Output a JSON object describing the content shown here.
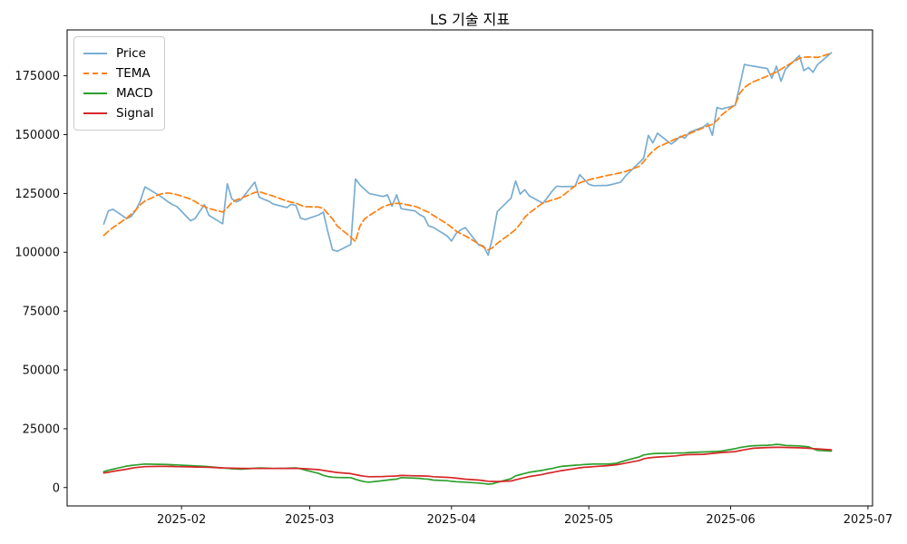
{
  "title": "LS 기술 지표",
  "legend": {
    "position": "upper left",
    "items": [
      {
        "label": "Price"
      },
      {
        "label": "TEMA"
      },
      {
        "label": "MACD"
      },
      {
        "label": "Signal"
      }
    ]
  },
  "colors": {
    "price": "#79add2",
    "tema": "#ff7f0e",
    "macd": "#2ca02c",
    "signal": "#d62728",
    "spine": "#000000",
    "tick_label": "#111111"
  },
  "chart_data": {
    "type": "line",
    "title": "LS 기술 지표",
    "xlabel": "",
    "ylabel": "",
    "grid": false,
    "legend_position": "upper left",
    "ylim": [
      -7800,
      194500
    ],
    "xlim": [
      "2025-01-07",
      "2025-07-02"
    ],
    "yticks": [
      0,
      25000,
      50000,
      75000,
      100000,
      125000,
      150000,
      175000
    ],
    "xticks": [
      {
        "date": "2025-02-01",
        "label": "2025-02"
      },
      {
        "date": "2025-03-01",
        "label": "2025-03"
      },
      {
        "date": "2025-04-01",
        "label": "2025-04"
      },
      {
        "date": "2025-05-01",
        "label": "2025-05"
      },
      {
        "date": "2025-06-01",
        "label": "2025-06"
      },
      {
        "date": "2025-07-01",
        "label": "2025-07"
      }
    ],
    "x": [
      "2025-01-15",
      "2025-01-16",
      "2025-01-17",
      "2025-01-20",
      "2025-01-21",
      "2025-01-22",
      "2025-01-23",
      "2025-01-24",
      "2025-01-27",
      "2025-01-28",
      "2025-01-29",
      "2025-01-30",
      "2025-01-31",
      "2025-02-03",
      "2025-02-04",
      "2025-02-05",
      "2025-02-06",
      "2025-02-07",
      "2025-02-10",
      "2025-02-11",
      "2025-02-12",
      "2025-02-13",
      "2025-02-14",
      "2025-02-17",
      "2025-02-18",
      "2025-02-19",
      "2025-02-20",
      "2025-02-21",
      "2025-02-24",
      "2025-02-25",
      "2025-02-26",
      "2025-02-27",
      "2025-02-28",
      "2025-03-03",
      "2025-03-04",
      "2025-03-05",
      "2025-03-06",
      "2025-03-07",
      "2025-03-10",
      "2025-03-11",
      "2025-03-12",
      "2025-03-13",
      "2025-03-14",
      "2025-03-17",
      "2025-03-18",
      "2025-03-19",
      "2025-03-20",
      "2025-03-21",
      "2025-03-24",
      "2025-03-25",
      "2025-03-26",
      "2025-03-27",
      "2025-03-28",
      "2025-03-31",
      "2025-04-01",
      "2025-04-02",
      "2025-04-03",
      "2025-04-04",
      "2025-04-07",
      "2025-04-08",
      "2025-04-09",
      "2025-04-10",
      "2025-04-11",
      "2025-04-14",
      "2025-04-15",
      "2025-04-16",
      "2025-04-17",
      "2025-04-18",
      "2025-04-21",
      "2025-04-22",
      "2025-04-23",
      "2025-04-24",
      "2025-04-25",
      "2025-04-28",
      "2025-04-29",
      "2025-04-30",
      "2025-05-01",
      "2025-05-02",
      "2025-05-05",
      "2025-05-06",
      "2025-05-07",
      "2025-05-08",
      "2025-05-09",
      "2025-05-12",
      "2025-05-13",
      "2025-05-14",
      "2025-05-15",
      "2025-05-16",
      "2025-05-19",
      "2025-05-20",
      "2025-05-21",
      "2025-05-22",
      "2025-05-23",
      "2025-05-26",
      "2025-05-27",
      "2025-05-28",
      "2025-05-29",
      "2025-05-30",
      "2025-06-02",
      "2025-06-03",
      "2025-06-04",
      "2025-06-05",
      "2025-06-06",
      "2025-06-09",
      "2025-06-10",
      "2025-06-11",
      "2025-06-12",
      "2025-06-13",
      "2025-06-16",
      "2025-06-17",
      "2025-06-18",
      "2025-06-19",
      "2025-06-20",
      "2025-06-23"
    ],
    "series": [
      {
        "name": "Price",
        "color": "#79add2",
        "style": "solid",
        "values": [
          112000,
          117600,
          118300,
          114300,
          115200,
          117800,
          121800,
          127800,
          124300,
          123000,
          121500,
          120300,
          119400,
          113400,
          114400,
          117400,
          120200,
          115700,
          112100,
          129100,
          122700,
          121400,
          122300,
          129800,
          123400,
          122500,
          121800,
          120500,
          119000,
          120400,
          119900,
          114500,
          113900,
          115900,
          117100,
          108500,
          101000,
          100400,
          103300,
          131200,
          128600,
          126800,
          125000,
          123700,
          124400,
          119600,
          124400,
          118500,
          117600,
          116000,
          115100,
          111200,
          110600,
          107000,
          104800,
          108000,
          109500,
          110500,
          103000,
          102700,
          98800,
          106500,
          117300,
          123000,
          130300,
          124700,
          126600,
          124000,
          120800,
          123400,
          126000,
          128100,
          127900,
          128000,
          133000,
          131000,
          128900,
          128300,
          128400,
          128800,
          129300,
          129800,
          132400,
          138100,
          140000,
          149700,
          146500,
          150600,
          146000,
          147400,
          149300,
          148500,
          151000,
          153200,
          154800,
          149700,
          161500,
          160900,
          162400,
          171000,
          179800,
          179400,
          179100,
          178100,
          174000,
          179100,
          172700,
          177900,
          183600,
          177200,
          178500,
          176500,
          179800,
          184800
        ]
      },
      {
        "name": "TEMA",
        "color": "#ff7f0e",
        "style": "dashed",
        "values": [
          107200,
          108900,
          110500,
          114500,
          116200,
          118000,
          120200,
          121800,
          124500,
          125000,
          125200,
          124900,
          124500,
          122600,
          121500,
          120300,
          119400,
          118600,
          117100,
          118900,
          121100,
          122300,
          122900,
          125400,
          125700,
          125100,
          124500,
          123900,
          121800,
          121300,
          120900,
          120000,
          119400,
          119200,
          118600,
          116300,
          114200,
          111200,
          106400,
          104600,
          111200,
          114200,
          115600,
          119300,
          120000,
          120600,
          120800,
          120700,
          119500,
          118800,
          117800,
          117000,
          115700,
          112100,
          110600,
          109000,
          107900,
          107000,
          103500,
          102200,
          101000,
          102000,
          103800,
          108100,
          109700,
          112000,
          114800,
          116700,
          121000,
          121600,
          122200,
          122800,
          123600,
          128200,
          129500,
          130200,
          130800,
          131300,
          132600,
          133000,
          133400,
          133800,
          134300,
          136500,
          138500,
          141000,
          143000,
          144600,
          147300,
          148200,
          148900,
          149800,
          150400,
          152900,
          153700,
          154400,
          156000,
          158300,
          162800,
          167600,
          170000,
          171400,
          172500,
          174900,
          175800,
          176600,
          177800,
          179000,
          182400,
          182900,
          183000,
          182900,
          182800,
          184600
        ]
      },
      {
        "name": "MACD",
        "color": "#2ca02c",
        "style": "solid",
        "values": [
          6800,
          7300,
          7800,
          9100,
          9400,
          9600,
          9800,
          10000,
          9900,
          9850,
          9800,
          9700,
          9600,
          9300,
          9200,
          9100,
          9050,
          8900,
          8360,
          8200,
          8000,
          7900,
          7820,
          8200,
          8360,
          8300,
          8200,
          8100,
          8200,
          8300,
          8360,
          8000,
          7440,
          6000,
          5200,
          4700,
          4400,
          4300,
          4240,
          3500,
          2970,
          2500,
          2310,
          2970,
          3200,
          3400,
          3580,
          4240,
          4000,
          3900,
          3700,
          3580,
          3200,
          2900,
          2700,
          2500,
          2400,
          2300,
          1900,
          1700,
          1430,
          1600,
          2200,
          3800,
          5000,
          5500,
          6000,
          6500,
          7400,
          7800,
          8100,
          8600,
          9000,
          9500,
          9630,
          9800,
          9900,
          10000,
          10000,
          10100,
          10300,
          10900,
          11500,
          13000,
          13870,
          14200,
          14400,
          14520,
          14600,
          14650,
          14700,
          14760,
          14900,
          15140,
          15200,
          15300,
          15400,
          15520,
          16500,
          17000,
          17330,
          17600,
          17800,
          17990,
          18100,
          18370,
          18200,
          17900,
          17720,
          17500,
          17330,
          16500,
          15790,
          15520
        ]
      },
      {
        "name": "Signal",
        "color": "#d62728",
        "style": "solid",
        "values": [
          6200,
          6500,
          6900,
          7800,
          8200,
          8500,
          8700,
          8900,
          9000,
          9000,
          9000,
          8950,
          8900,
          8800,
          8750,
          8700,
          8650,
          8600,
          8360,
          8300,
          8250,
          8200,
          8150,
          8100,
          8100,
          8150,
          8150,
          8100,
          8150,
          8150,
          8150,
          8100,
          8000,
          7600,
          7300,
          7000,
          6700,
          6400,
          5900,
          5500,
          5100,
          4800,
          4620,
          4700,
          4800,
          4850,
          4900,
          5160,
          5000,
          4950,
          4900,
          4850,
          4620,
          4350,
          4240,
          4000,
          3800,
          3580,
          3200,
          2970,
          2700,
          2600,
          2550,
          2800,
          3300,
          3800,
          4240,
          4700,
          5600,
          6100,
          6430,
          6800,
          7200,
          8090,
          8400,
          8600,
          8740,
          8900,
          9300,
          9500,
          9700,
          10000,
          10400,
          11500,
          12210,
          12600,
          12800,
          12980,
          13300,
          13480,
          13700,
          13900,
          14000,
          14140,
          14300,
          14500,
          14700,
          14900,
          15300,
          15700,
          16060,
          16400,
          16700,
          17000,
          17070,
          17100,
          17100,
          17050,
          16900,
          16830,
          16700,
          16550,
          16440,
          16060
        ]
      }
    ]
  }
}
